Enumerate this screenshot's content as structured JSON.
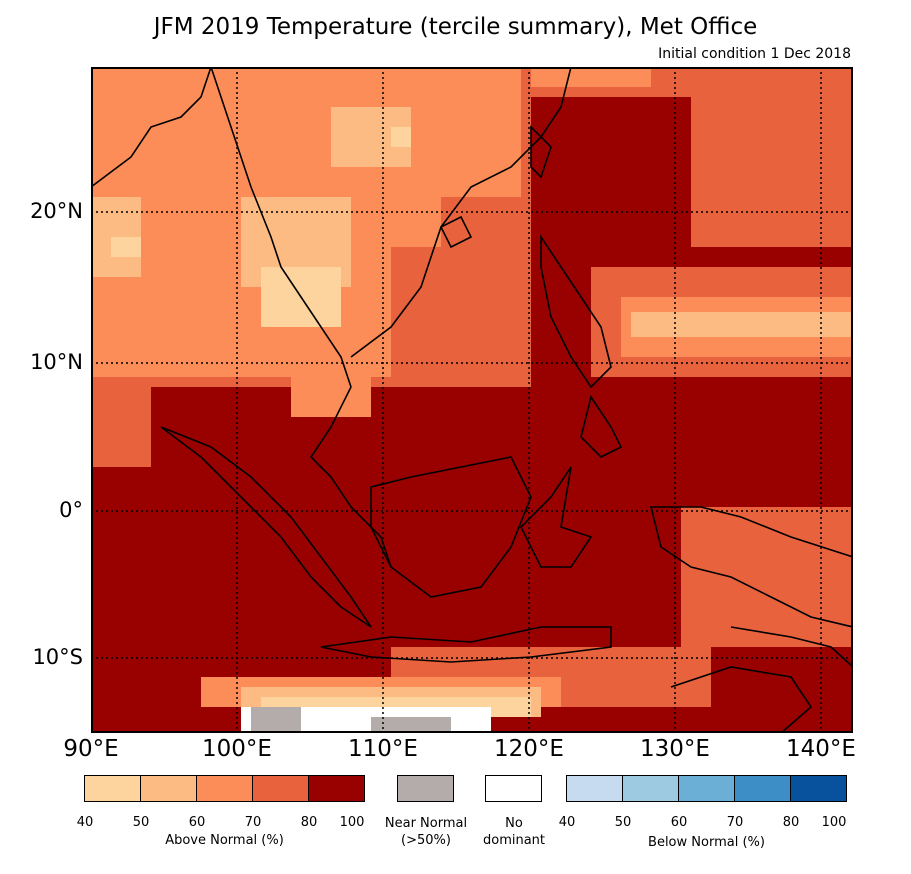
{
  "title": "JFM 2019 Temperature (tercile summary), Met Office",
  "subtitle": "Initial condition 1 Dec 2018",
  "map": {
    "lon_range": [
      90,
      142
    ],
    "lat_range": [
      -15,
      30
    ],
    "lat_labels": [
      "20°N",
      "10°N",
      "0°",
      "10°S"
    ],
    "lon_labels": [
      "90°E",
      "100°E",
      "110°E",
      "120°E",
      "130°E",
      "140°E"
    ],
    "dominant_category": "Above Normal",
    "predominant_class": "80-100"
  },
  "colors": {
    "above": [
      "#fdd49e",
      "#fdbb84",
      "#fc8d59",
      "#e9623e",
      "#990000"
    ],
    "below": [
      "#c6dbef",
      "#9ecae1",
      "#6baed6",
      "#3d8ec7",
      "#08519c"
    ],
    "near_normal": "#b3acab",
    "no_dominant": "#ffffff"
  },
  "legend": {
    "above": {
      "caption": "Above Normal (%)",
      "ticks": [
        "40",
        "50",
        "60",
        "70",
        "80",
        "100"
      ]
    },
    "near_normal": {
      "line1": "Near Normal",
      "line2": "(>50%)"
    },
    "no_dominant": {
      "line1": "No",
      "line2": "dominant"
    },
    "below": {
      "caption": "Below Normal (%)",
      "ticks": [
        "40",
        "50",
        "60",
        "70",
        "80",
        "100"
      ]
    }
  }
}
